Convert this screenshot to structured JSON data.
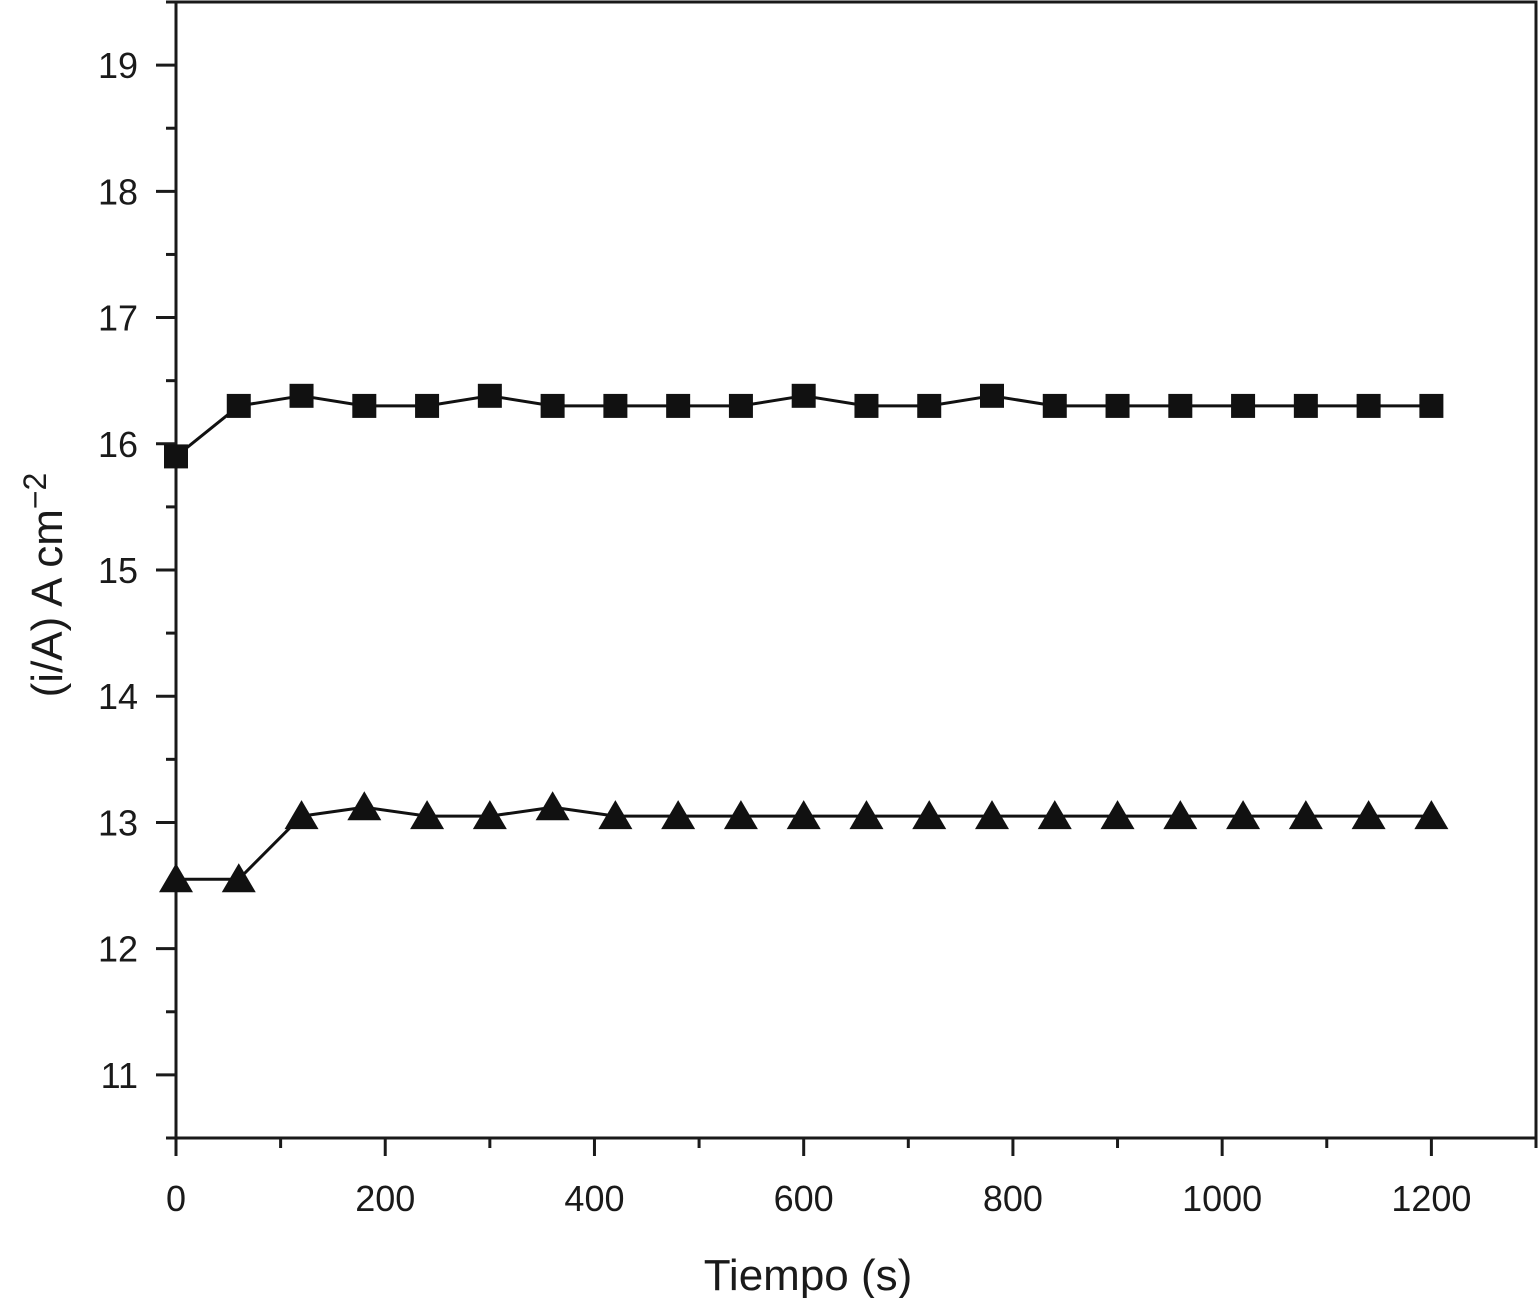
{
  "chart_data": {
    "type": "line",
    "xlabel": "Tiempo (s)",
    "ylabel_main": "(i/A) A cm",
    "ylabel_sup": "−2",
    "xlim": [
      0,
      1300
    ],
    "ylim": [
      10.5,
      19.5
    ],
    "x_ticks": [
      0,
      200,
      400,
      600,
      800,
      1000,
      1200
    ],
    "x_tick_labels": [
      "0",
      "200",
      "400",
      "600",
      "800",
      "1000",
      "1200"
    ],
    "y_ticks": [
      11,
      12,
      13,
      14,
      15,
      16,
      17,
      18,
      19
    ],
    "y_tick_labels": [
      "11",
      "12",
      "13",
      "14",
      "15",
      "16",
      "17",
      "18",
      "19"
    ],
    "grid": false,
    "series": [
      {
        "marker": "square",
        "x": [
          0,
          60,
          120,
          180,
          240,
          300,
          360,
          420,
          480,
          540,
          600,
          660,
          720,
          780,
          840,
          900,
          960,
          1020,
          1080,
          1140,
          1200
        ],
        "values": [
          15.9,
          16.3,
          16.38,
          16.3,
          16.3,
          16.38,
          16.3,
          16.3,
          16.3,
          16.3,
          16.38,
          16.3,
          16.3,
          16.38,
          16.3,
          16.3,
          16.3,
          16.3,
          16.3,
          16.3,
          16.3
        ]
      },
      {
        "marker": "triangle",
        "x": [
          0,
          60,
          120,
          180,
          240,
          300,
          360,
          420,
          480,
          540,
          600,
          660,
          720,
          780,
          840,
          900,
          960,
          1020,
          1080,
          1140,
          1200
        ],
        "values": [
          12.55,
          12.55,
          13.05,
          13.12,
          13.05,
          13.05,
          13.12,
          13.05,
          13.05,
          13.05,
          13.05,
          13.05,
          13.05,
          13.05,
          13.05,
          13.05,
          13.05,
          13.05,
          13.05,
          13.05,
          13.05
        ]
      }
    ]
  }
}
